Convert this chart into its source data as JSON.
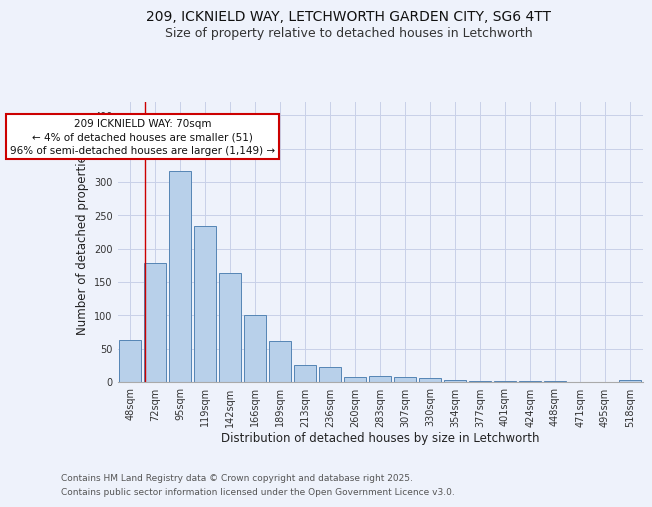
{
  "title_line1": "209, ICKNIELD WAY, LETCHWORTH GARDEN CITY, SG6 4TT",
  "title_line2": "Size of property relative to detached houses in Letchworth",
  "xlabel": "Distribution of detached houses by size in Letchworth",
  "ylabel": "Number of detached properties",
  "bar_labels": [
    "48sqm",
    "72sqm",
    "95sqm",
    "119sqm",
    "142sqm",
    "166sqm",
    "189sqm",
    "213sqm",
    "236sqm",
    "260sqm",
    "283sqm",
    "307sqm",
    "330sqm",
    "354sqm",
    "377sqm",
    "401sqm",
    "424sqm",
    "448sqm",
    "471sqm",
    "495sqm",
    "518sqm"
  ],
  "bar_values": [
    63,
    178,
    316,
    234,
    164,
    101,
    61,
    26,
    22,
    8,
    9,
    7,
    6,
    3,
    2,
    1,
    1,
    1,
    0,
    0,
    3
  ],
  "bar_color": "#b8d0ea",
  "bar_edge_color": "#5585b5",
  "background_color": "#eef2fb",
  "grid_color": "#c8d0e8",
  "annotation_text": "209 ICKNIELD WAY: 70sqm\n← 4% of detached houses are smaller (51)\n96% of semi-detached houses are larger (1,149) →",
  "annotation_box_color": "#ffffff",
  "annotation_box_edge": "#cc0000",
  "annotation_text_size": 7.5,
  "vline_x": 0.6,
  "vline_color": "#cc0000",
  "ylim": [
    0,
    420
  ],
  "yticks": [
    0,
    50,
    100,
    150,
    200,
    250,
    300,
    350,
    400
  ],
  "footer_line1": "Contains HM Land Registry data © Crown copyright and database right 2025.",
  "footer_line2": "Contains public sector information licensed under the Open Government Licence v3.0.",
  "title_fontsize": 10,
  "subtitle_fontsize": 9,
  "axis_label_fontsize": 8.5,
  "tick_fontsize": 7,
  "footer_fontsize": 6.5
}
